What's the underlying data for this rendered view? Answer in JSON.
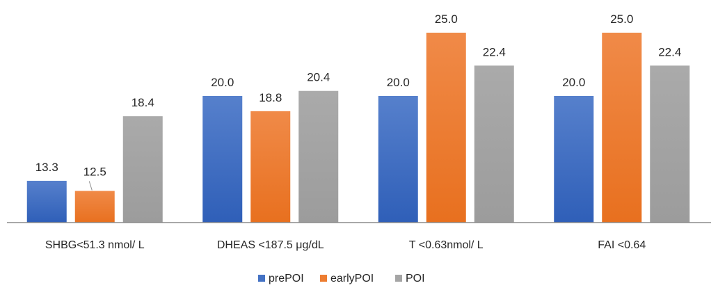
{
  "chart_data": {
    "type": "bar",
    "title": "",
    "xlabel": "",
    "ylabel": "",
    "ylim": [
      10,
      27.5
    ],
    "grid": false,
    "legend_position": "bottom",
    "categories": [
      "SHBG<51.3 nmol/ L",
      "DHEAS <187.5 μg/dL",
      "T <0.63nmol/ L",
      "FAI <0.64"
    ],
    "series": [
      {
        "name": "prePOI",
        "color": "#4472C4",
        "values": [
          13.3,
          20.0,
          20.0,
          20.0
        ],
        "labels": [
          "13.3",
          "20.0",
          "20.0",
          "20.0"
        ]
      },
      {
        "name": "earlyPOI",
        "color": "#ED7D31",
        "values": [
          12.5,
          18.8,
          25.0,
          25.0
        ],
        "labels": [
          "12.5",
          "18.8",
          "25.0",
          "25.0"
        ]
      },
      {
        "name": "POI",
        "color": "#A5A5A5",
        "values": [
          18.4,
          20.4,
          22.4,
          22.4
        ],
        "labels": [
          "18.4",
          "20.4",
          "22.4",
          "22.4"
        ]
      }
    ]
  }
}
